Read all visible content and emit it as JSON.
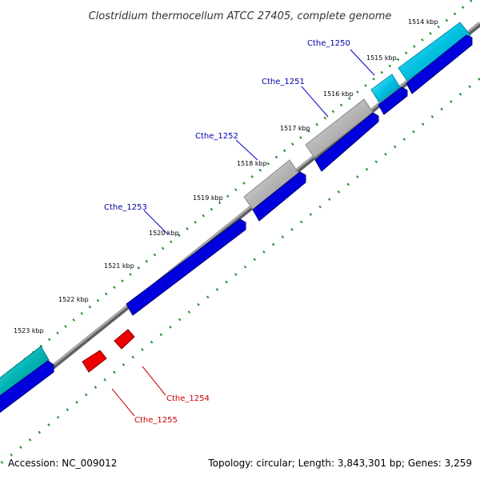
{
  "title": "Clostridium thermocellum ATCC 27405, complete genome",
  "footer": {
    "accession": "Accession: NC_009012",
    "summary": "Topology: circular; Length: 3,843,301 bp; Genes: 3,259"
  },
  "colors": {
    "background": "#ffffff",
    "backbone": "#808080",
    "cds_forward": "#0000dd",
    "gene_cyan": "#00c0e0",
    "gene_teal": "#00b4b4",
    "gene_gray": "#b4b4b4",
    "gene_reverse_red": "#ee0000",
    "label_forward": "#0000aa",
    "label_reverse": "#cc0000",
    "tick_green": "#228b22"
  },
  "ruler": [
    {
      "label": "1514 kbp"
    },
    {
      "label": "1515 kbp"
    },
    {
      "label": "1516 kbp"
    },
    {
      "label": "1517 kbp"
    },
    {
      "label": "1518 kbp"
    },
    {
      "label": "1519 kbp"
    },
    {
      "label": "1520 kbp"
    },
    {
      "label": "1521 kbp"
    },
    {
      "label": "1522 kbp"
    },
    {
      "label": "1523 kbp"
    }
  ],
  "gene_labels": [
    {
      "name": "Cthe_1250",
      "strand": "forward"
    },
    {
      "name": "Cthe_1251",
      "strand": "forward"
    },
    {
      "name": "Cthe_1252",
      "strand": "forward"
    },
    {
      "name": "Cthe_1253",
      "strand": "forward"
    },
    {
      "name": "Cthe_1254",
      "strand": "reverse"
    },
    {
      "name": "Cthe_1255",
      "strand": "reverse"
    }
  ]
}
